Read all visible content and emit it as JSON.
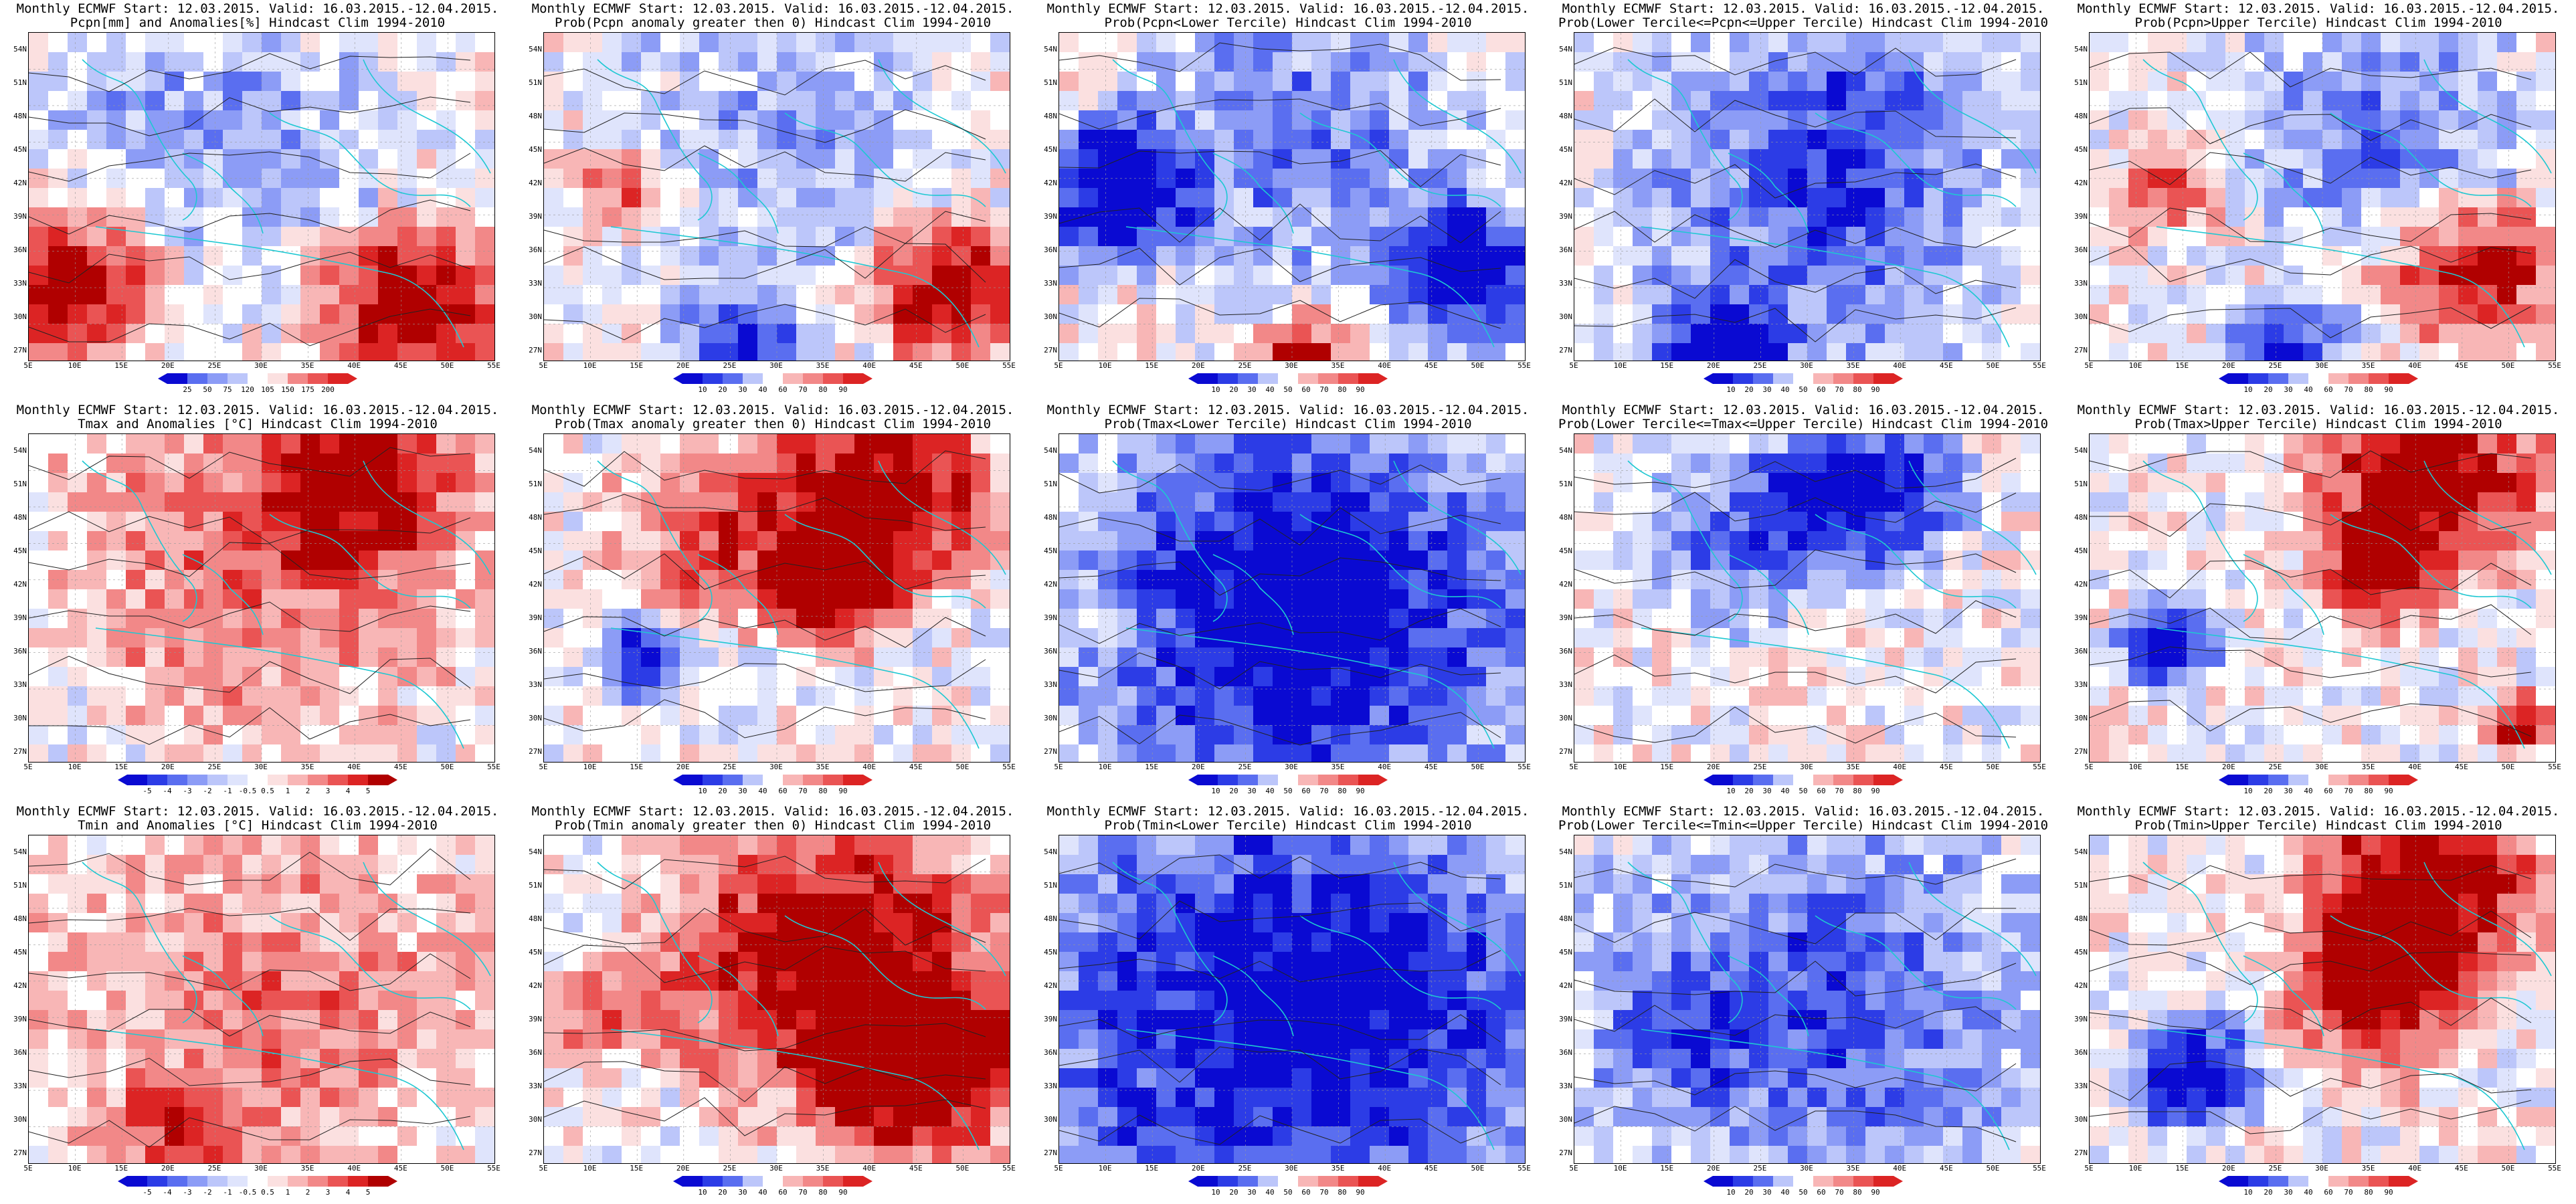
{
  "panels": [
    {
      "line1": "Monthly ECMWF Start: 12.03.2015. Valid: 16.03.2015.-12.04.2015.",
      "line2": "Pcpn[mm] and Anomalies[%] Hindcast Clim 1994-2010",
      "scale": "anom_pcpn",
      "cbar_labels": [
        "25",
        "50",
        "75",
        "120",
        "105",
        "150",
        "175",
        "200"
      ]
    },
    {
      "line1": "Monthly ECMWF Start: 12.03.2015. Valid: 16.03.2015.-12.04.2015.",
      "line2": "Prob(Pcpn anomaly greater then 0) Hindcast Clim 1994-2010",
      "scale": "prob",
      "cbar_labels": [
        "10",
        "20",
        "30",
        "40",
        "60",
        "70",
        "80",
        "90"
      ]
    },
    {
      "line1": "Monthly ECMWF Start: 12.03.2015. Valid: 16.03.2015.-12.04.2015.",
      "line2": "Prob(Pcpn<Lower Tercile) Hindcast Clim 1994-2010",
      "scale": "prob",
      "cbar_labels": [
        "10",
        "20",
        "30",
        "40",
        "50",
        "60",
        "70",
        "80",
        "90"
      ]
    },
    {
      "line1": "Monthly ECMWF Start: 12.03.2015. Valid: 16.03.2015.-12.04.2015.",
      "line2": "Prob(Lower Tercile<=Pcpn<=Upper Tercile) Hindcast Clim 1994-2010",
      "scale": "prob",
      "cbar_labels": [
        "10",
        "20",
        "30",
        "40",
        "50",
        "60",
        "70",
        "80",
        "90"
      ]
    },
    {
      "line1": "Monthly ECMWF Start: 12.03.2015. Valid: 16.03.2015.-12.04.2015.",
      "line2": "Prob(Pcpn>Upper Tercile) Hindcast Clim 1994-2010",
      "scale": "prob",
      "cbar_labels": [
        "10",
        "20",
        "30",
        "40",
        "60",
        "70",
        "80",
        "90"
      ]
    },
    {
      "line1": "Monthly ECMWF Start: 12.03.2015. Valid: 16.03.2015.-12.04.2015.",
      "line2": "Tmax and Anomalies [°C] Hindcast Clim 1994-2010",
      "scale": "anom_temp",
      "cbar_labels": [
        "-5",
        "-4",
        "-3",
        "-2",
        "-1",
        "-0.5",
        "0.5",
        "1",
        "2",
        "3",
        "4",
        "5"
      ]
    },
    {
      "line1": "Monthly ECMWF Start: 12.03.2015. Valid: 16.03.2015.-12.04.2015.",
      "line2": "Prob(Tmax anomaly greater then 0) Hindcast Clim 1994-2010",
      "scale": "prob",
      "cbar_labels": [
        "10",
        "20",
        "30",
        "40",
        "60",
        "70",
        "80",
        "90"
      ]
    },
    {
      "line1": "Monthly ECMWF Start: 12.03.2015. Valid: 16.03.2015.-12.04.2015.",
      "line2": "Prob(Tmax<Lower Tercile) Hindcast Clim 1994-2010",
      "scale": "prob",
      "cbar_labels": [
        "10",
        "20",
        "30",
        "40",
        "50",
        "60",
        "70",
        "80",
        "90"
      ]
    },
    {
      "line1": "Monthly ECMWF Start: 12.03.2015. Valid: 16.03.2015.-12.04.2015.",
      "line2": "Prob(Lower Tercile<=Tmax<=Upper Tercile) Hindcast Clim 1994-2010",
      "scale": "prob",
      "cbar_labels": [
        "10",
        "20",
        "30",
        "40",
        "50",
        "60",
        "70",
        "80",
        "90"
      ]
    },
    {
      "line1": "Monthly ECMWF Start: 12.03.2015. Valid: 16.03.2015.-12.04.2015.",
      "line2": "Prob(Tmax>Upper Tercile) Hindcast Clim 1994-2010",
      "scale": "prob",
      "cbar_labels": [
        "10",
        "20",
        "30",
        "40",
        "60",
        "70",
        "80",
        "90"
      ]
    },
    {
      "line1": "Monthly ECMWF Start: 12.03.2015. Valid: 16.03.2015.-12.04.2015.",
      "line2": "Tmin and Anomalies [°C] Hindcast Clim 1994-2010",
      "scale": "anom_temp",
      "cbar_labels": [
        "-5",
        "-4",
        "-3",
        "-2",
        "-1",
        "-0.5",
        "0.5",
        "1",
        "2",
        "3",
        "4",
        "5"
      ]
    },
    {
      "line1": "Monthly ECMWF Start: 12.03.2015. Valid: 16.03.2015.-12.04.2015.",
      "line2": "Prob(Tmin anomaly greater then 0) Hindcast Clim 1994-2010",
      "scale": "prob",
      "cbar_labels": [
        "10",
        "20",
        "30",
        "40",
        "60",
        "70",
        "80",
        "90"
      ]
    },
    {
      "line1": "Monthly ECMWF Start: 12.03.2015. Valid: 16.03.2015.-12.04.2015.",
      "line2": "Prob(Tmin<Lower Tercile) Hindcast Clim 1994-2010",
      "scale": "prob",
      "cbar_labels": [
        "10",
        "20",
        "30",
        "40",
        "50",
        "60",
        "70",
        "80",
        "90"
      ]
    },
    {
      "line1": "Monthly ECMWF Start: 12.03.2015. Valid: 16.03.2015.-12.04.2015.",
      "line2": "Prob(Lower Tercile<=Tmin<=Upper Tercile) Hindcast Clim 1994-2010",
      "scale": "prob",
      "cbar_labels": [
        "10",
        "20",
        "30",
        "40",
        "50",
        "60",
        "70",
        "80",
        "90"
      ]
    },
    {
      "line1": "Monthly ECMWF Start: 12.03.2015. Valid: 16.03.2015.-12.04.2015.",
      "line2": "Prob(Tmin>Upper Tercile) Hindcast Clim 1994-2010",
      "scale": "prob",
      "cbar_labels": [
        "10",
        "20",
        "30",
        "40",
        "60",
        "70",
        "80",
        "90"
      ]
    }
  ],
  "lat_labels": [
    "54N",
    "51N",
    "48N",
    "45N",
    "42N",
    "39N",
    "36N",
    "33N",
    "30N",
    "27N"
  ],
  "lon_labels": [
    "5E",
    "10E",
    "15E",
    "20E",
    "25E",
    "30E",
    "35E",
    "40E",
    "45E",
    "50E",
    "55E"
  ],
  "colors": {
    "blues": [
      "#0a0ad2",
      "#2c3ce6",
      "#5a6ef0",
      "#8c9cf6",
      "#bcc6fa",
      "#dfe4fc"
    ],
    "reds": [
      "#fbe0e0",
      "#f8b6b6",
      "#f28888",
      "#ea5454",
      "#dc2424",
      "#b00000"
    ],
    "white": "#ffffff",
    "coast": "#1ec8d2",
    "contour": "#222222"
  }
}
